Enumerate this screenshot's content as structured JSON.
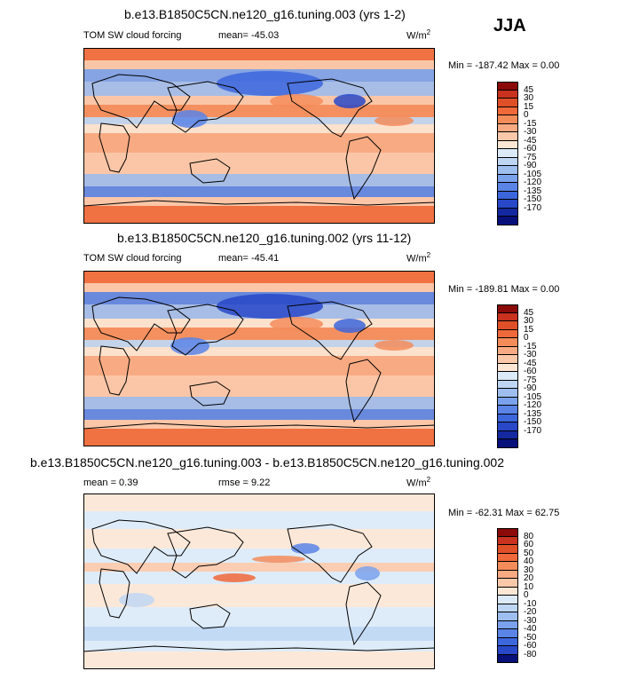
{
  "season": "JJA",
  "panels": [
    {
      "title": "b.e13.B1850C5CN.ne120_g16.tuning.003 (yrs 1-2)",
      "variable": "TOM SW cloud forcing",
      "stats_left": "mean= -45.03",
      "stats_mid": "",
      "units": "W/m",
      "units_sup": "2",
      "minmax": "Min = -187.42 Max =    0.00",
      "colorbar": {
        "colors": [
          "#8b0a0a",
          "#c8321e",
          "#e05028",
          "#f0693a",
          "#f48c5a",
          "#f8aa82",
          "#fcc8aa",
          "#fde6d4",
          "#dceaf8",
          "#bed6f4",
          "#9ebef0",
          "#7aa2ec",
          "#5a84e6",
          "#3c66dc",
          "#2848c8",
          "#1428a0",
          "#08107a"
        ],
        "labels": [
          "45",
          "30",
          "15",
          "0",
          "-15",
          "-30",
          "-45",
          "-60",
          "-75",
          "-90",
          "-105",
          "-120",
          "-135",
          "-150",
          "-170"
        ]
      }
    },
    {
      "title": "b.e13.B1850C5CN.ne120_g16.tuning.002 (yrs 11-12)",
      "variable": "TOM SW cloud forcing",
      "stats_left": "mean= -45.41",
      "stats_mid": "",
      "units": "W/m",
      "units_sup": "2",
      "minmax": "Min = -189.81 Max =    0.00",
      "colorbar": {
        "colors": [
          "#8b0a0a",
          "#c8321e",
          "#e05028",
          "#f0693a",
          "#f48c5a",
          "#f8aa82",
          "#fcc8aa",
          "#fde6d4",
          "#dceaf8",
          "#bed6f4",
          "#9ebef0",
          "#7aa2ec",
          "#5a84e6",
          "#3c66dc",
          "#2848c8",
          "#1428a0",
          "#08107a"
        ],
        "labels": [
          "45",
          "30",
          "15",
          "0",
          "-15",
          "-30",
          "-45",
          "-60",
          "-75",
          "-90",
          "-105",
          "-120",
          "-135",
          "-150",
          "-170"
        ]
      }
    },
    {
      "title": "b.e13.B1850C5CN.ne120_g16.tuning.003 - b.e13.B1850C5CN.ne120_g16.tuning.002",
      "variable": "",
      "stats_left": "mean =   0.39",
      "stats_mid": "rmse =   9.22",
      "units": "W/m",
      "units_sup": "2",
      "minmax": "Min = -62.31 Max =  62.75",
      "colorbar": {
        "colors": [
          "#8b0a0a",
          "#c8321e",
          "#e05028",
          "#f0693a",
          "#f48c5a",
          "#f8aa82",
          "#fcc8aa",
          "#fde6d4",
          "#dceaf8",
          "#bed6f4",
          "#9ebef0",
          "#7aa2ec",
          "#5a84e6",
          "#3c66dc",
          "#2848c8",
          "#08107a"
        ],
        "labels": [
          "80",
          "60",
          "50",
          "40",
          "30",
          "20",
          "10",
          "0",
          "-10",
          "-20",
          "-30",
          "-40",
          "-50",
          "-60",
          "-80"
        ]
      }
    }
  ],
  "chart_data": [
    {
      "type": "heatmap",
      "title": "b.e13.B1850C5CN.ne120_g16.tuning.003 (yrs 1-2)",
      "variable": "TOM SW cloud forcing",
      "units": "W/m2",
      "mean": -45.03,
      "min": -187.42,
      "max": 0.0,
      "levels": [
        45,
        30,
        15,
        0,
        -15,
        -30,
        -45,
        -60,
        -75,
        -90,
        -105,
        -120,
        -135,
        -150,
        -170
      ]
    },
    {
      "type": "heatmap",
      "title": "b.e13.B1850C5CN.ne120_g16.tuning.002 (yrs 11-12)",
      "variable": "TOM SW cloud forcing",
      "units": "W/m2",
      "mean": -45.41,
      "min": -189.81,
      "max": 0.0,
      "levels": [
        45,
        30,
        15,
        0,
        -15,
        -30,
        -45,
        -60,
        -75,
        -90,
        -105,
        -120,
        -135,
        -150,
        -170
      ]
    },
    {
      "type": "heatmap",
      "title": "b.e13.B1850C5CN.ne120_g16.tuning.003 - b.e13.B1850C5CN.ne120_g16.tuning.002",
      "units": "W/m2",
      "mean": 0.39,
      "rmse": 9.22,
      "min": -62.31,
      "max": 62.75,
      "levels": [
        80,
        60,
        50,
        40,
        30,
        20,
        10,
        0,
        -10,
        -20,
        -30,
        -40,
        -50,
        -60,
        -80
      ]
    }
  ]
}
